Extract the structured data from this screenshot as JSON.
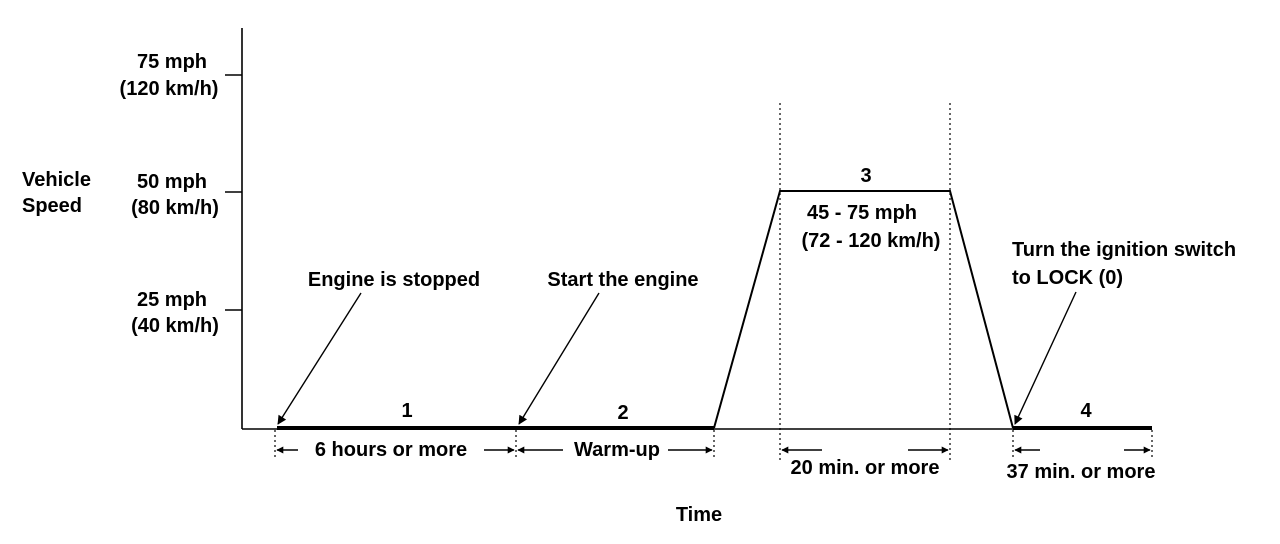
{
  "y_axis": {
    "title_line1": "Vehicle",
    "title_line2": "Speed",
    "ticks": [
      {
        "line1": "75 mph",
        "line2": "(120 km/h)"
      },
      {
        "line1": "50 mph",
        "line2": "(80 km/h)"
      },
      {
        "line1": "25 mph",
        "line2": "(40 km/h)"
      }
    ]
  },
  "x_axis": {
    "title": "Time"
  },
  "annotations": {
    "engine_stopped": "Engine is stopped",
    "start_engine": "Start the engine",
    "ignition_line1": "Turn the ignition switch",
    "ignition_line2": "to LOCK (0)",
    "speed_range_line1": "45 - 75 mph",
    "speed_range_line2": "(72 - 120 km/h)"
  },
  "phases": [
    {
      "number": "1",
      "duration": "6 hours or more"
    },
    {
      "number": "2",
      "duration": "Warm-up"
    },
    {
      "number": "3",
      "duration": "20 min. or more"
    },
    {
      "number": "4",
      "duration": "37 min. or more"
    }
  ]
}
